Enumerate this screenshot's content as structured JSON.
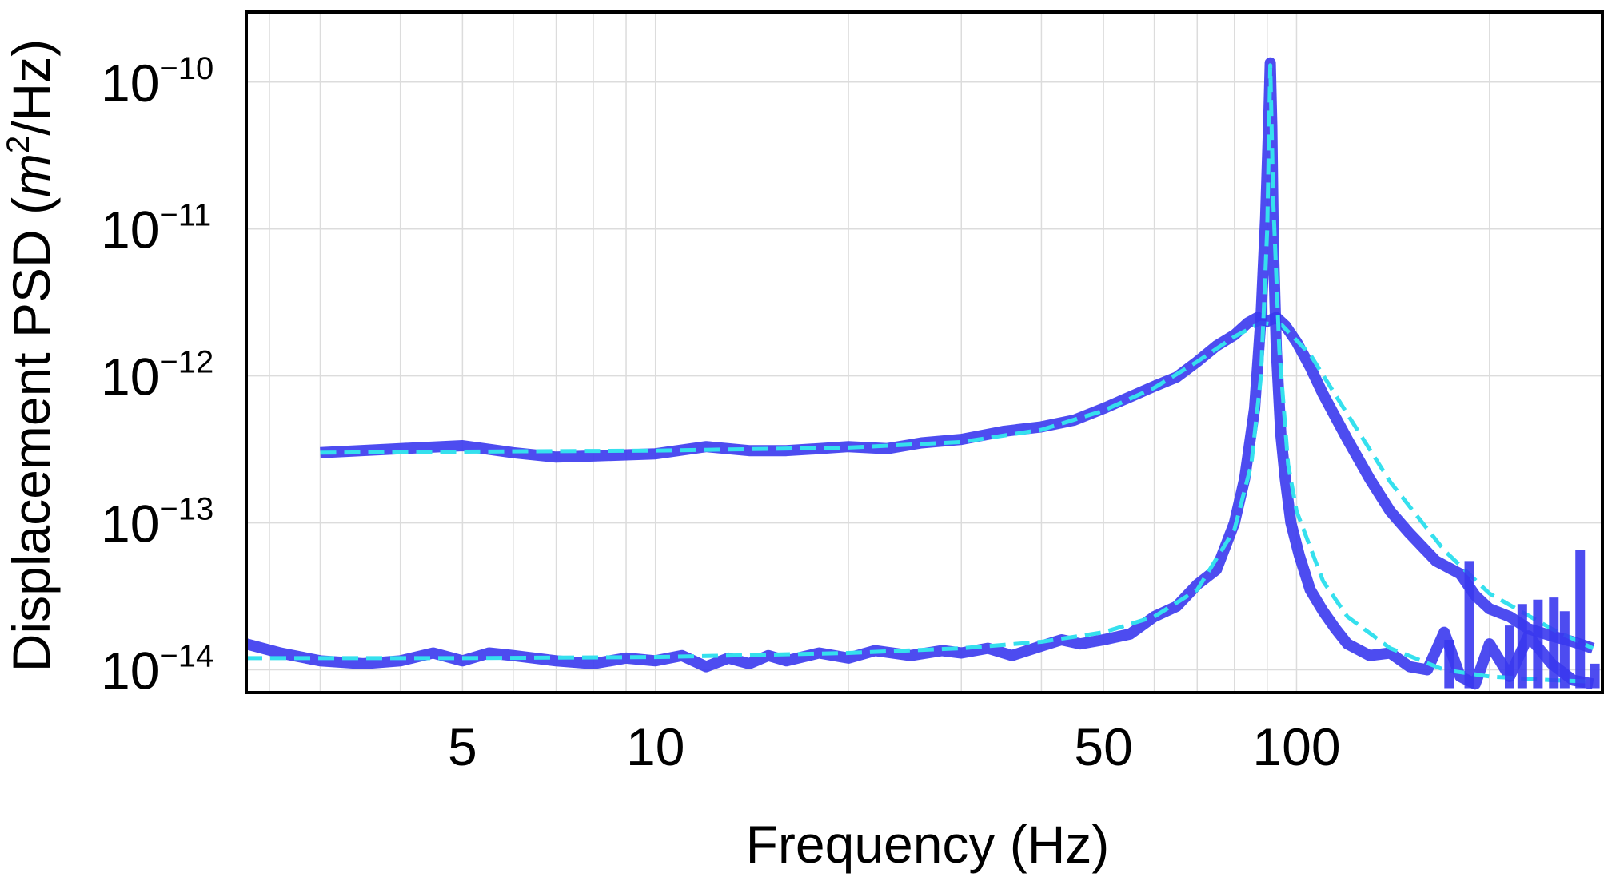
{
  "chart_data": {
    "type": "line",
    "xlabel": "Frequency (Hz)",
    "ylabel_base": "Displacement PSD (",
    "ylabel_italic": "m",
    "ylabel_sup": "2",
    "ylabel_tail": "/Hz)",
    "x_scale": "log",
    "y_scale": "log",
    "xlim": [
      2.3,
      300
    ],
    "ylim": [
      7e-15,
      3e-10
    ],
    "x_ticks": [
      {
        "value": 5,
        "label": "5"
      },
      {
        "value": 10,
        "label": "10"
      },
      {
        "value": 50,
        "label": "50"
      },
      {
        "value": 100,
        "label": "100"
      }
    ],
    "y_ticks": [
      {
        "value": 1e-14,
        "base": "10",
        "exp": "−14"
      },
      {
        "value": 1e-13,
        "base": "10",
        "exp": "−13"
      },
      {
        "value": 1e-12,
        "base": "10",
        "exp": "−12"
      },
      {
        "value": 1e-11,
        "base": "10",
        "exp": "−11"
      },
      {
        "value": 1e-10,
        "base": "10",
        "exp": "−10"
      }
    ],
    "x_grid": [
      2.5,
      3,
      4,
      5,
      6,
      7,
      8,
      9,
      10,
      20,
      30,
      40,
      50,
      60,
      70,
      80,
      90,
      100,
      200,
      300
    ],
    "grid": true,
    "colors": {
      "data": "#3a38ee",
      "fit": "#35e0ee",
      "grid": "#dcdcdc",
      "frame": "#000000"
    },
    "series": [
      {
        "style": "data",
        "x": [
          3.0,
          4.0,
          5.0,
          6.0,
          7.0,
          8.0,
          10.0,
          12.0,
          14.0,
          16.0,
          18.0,
          20.0,
          23.0,
          26.0,
          30.0,
          35.0,
          40.0,
          45.0,
          50.0,
          55.0,
          60.0,
          65.0,
          70.0,
          75.0,
          80.0,
          84.0,
          87.0,
          90.0,
          93.0,
          96.0,
          100.0,
          105.0,
          110.0,
          120.0,
          130.0,
          140.0,
          150.0,
          165.0,
          180.0,
          190.0,
          200.0,
          215.0,
          230.0,
          250.0,
          270.0,
          290.0
        ],
        "y": [
          3e-13,
          3.2e-13,
          3.35e-13,
          3e-13,
          2.8e-13,
          2.85e-13,
          2.95e-13,
          3.3e-13,
          3.1e-13,
          3.1e-13,
          3.2e-13,
          3.3e-13,
          3.2e-13,
          3.5e-13,
          3.7e-13,
          4.2e-13,
          4.5e-13,
          5e-13,
          6e-13,
          7.2e-13,
          8.5e-13,
          9.8e-13,
          1.25e-12,
          1.6e-12,
          1.9e-12,
          2.3e-12,
          2.5e-12,
          2.35e-12,
          2.5e-12,
          2.2e-12,
          1.7e-12,
          1.15e-12,
          7.5e-13,
          3.7e-13,
          2e-13,
          1.2e-13,
          8.5e-14,
          5.5e-14,
          4.5e-14,
          3.2e-14,
          2.6e-14,
          2.3e-14,
          1.9e-14,
          1.7e-14,
          1.55e-14,
          1.4e-14
        ]
      },
      {
        "style": "fit",
        "x": [
          3.0,
          5.0,
          10.0,
          20.0,
          30.0,
          40.0,
          50.0,
          60.0,
          70.0,
          80.0,
          88.0,
          95.0,
          105.0,
          120.0,
          140.0,
          170.0,
          200.0,
          250.0,
          290.0
        ],
        "y": [
          3e-13,
          3.05e-13,
          3.1e-13,
          3.25e-13,
          3.55e-13,
          4.3e-13,
          5.8e-13,
          8.3e-13,
          1.25e-12,
          1.85e-12,
          2.3e-12,
          2.2e-12,
          1.4e-12,
          5.5e-13,
          1.9e-13,
          6.5e-14,
          3.3e-14,
          1.9e-14,
          1.4e-14
        ]
      },
      {
        "style": "data",
        "x": [
          2.3,
          2.6,
          3.0,
          3.5,
          4.0,
          4.5,
          5.0,
          5.5,
          6.0,
          7.0,
          8.0,
          9.0,
          10.0,
          11.0,
          12.0,
          13.0,
          14.0,
          15.0,
          16.0,
          18.0,
          20.0,
          22.0,
          25.0,
          28.0,
          30.0,
          33.0,
          36.0,
          40.0,
          43.0,
          46.0,
          50.0,
          55.0,
          60.0,
          65.0,
          70.0,
          75.0,
          80.0,
          83.0,
          86.0,
          88.0,
          89.5,
          90.5,
          91.0,
          91.5,
          92.0,
          93.0,
          94.5,
          96.0,
          98.0,
          101.0,
          105.0,
          110.0,
          115.0,
          120.0,
          130.0,
          140.0,
          150.0,
          160.0,
          170.0,
          180.0,
          190.0,
          200.0,
          215.0,
          230.0,
          250.0,
          270.0,
          290.0
        ],
        "y": [
          1.5e-14,
          1.3e-14,
          1.15e-14,
          1.1e-14,
          1.15e-14,
          1.3e-14,
          1.15e-14,
          1.3e-14,
          1.25e-14,
          1.15e-14,
          1.1e-14,
          1.2e-14,
          1.15e-14,
          1.25e-14,
          1.05e-14,
          1.2e-14,
          1.1e-14,
          1.25e-14,
          1.15e-14,
          1.3e-14,
          1.2e-14,
          1.35e-14,
          1.25e-14,
          1.35e-14,
          1.3e-14,
          1.4e-14,
          1.25e-14,
          1.45e-14,
          1.6e-14,
          1.5e-14,
          1.6e-14,
          1.75e-14,
          2.3e-14,
          2.7e-14,
          3.8e-14,
          4.8e-14,
          1e-13,
          2e-13,
          6e-13,
          2.5e-12,
          1.2e-11,
          5.5e-11,
          1.35e-10,
          5e-11,
          8e-12,
          1.5e-12,
          4e-13,
          2e-13,
          1e-13,
          6e-14,
          3.5e-14,
          2.5e-14,
          1.9e-14,
          1.5e-14,
          1.25e-14,
          1.3e-14,
          1.05e-14,
          1e-14,
          1.8e-14,
          9e-15,
          8e-15,
          1.5e-14,
          9e-15,
          1.7e-14,
          1.1e-14,
          8.5e-15,
          8e-15
        ]
      },
      {
        "style": "fit",
        "x": [
          2.3,
          5.0,
          10.0,
          20.0,
          30.0,
          40.0,
          50.0,
          60.0,
          70.0,
          80.0,
          85.0,
          88.0,
          90.0,
          91.0,
          92.0,
          94.0,
          97.0,
          100.0,
          110.0,
          120.0,
          140.0,
          170.0,
          200.0,
          250.0,
          290.0
        ],
        "y": [
          1.2e-14,
          1.2e-14,
          1.22e-14,
          1.3e-14,
          1.4e-14,
          1.55e-14,
          1.8e-14,
          2.3e-14,
          3.5e-14,
          9e-14,
          2.5e-13,
          1e-12,
          1e-11,
          1.3e-10,
          1.5e-11,
          1.5e-12,
          2.5e-13,
          1.2e-13,
          4e-14,
          2.3e-14,
          1.4e-14,
          1e-14,
          9e-15,
          8.5e-15,
          8.3e-15
        ]
      }
    ],
    "spikes": [
      {
        "x": 173,
        "y_low": 7.5e-15,
        "y_high": 1.6e-14
      },
      {
        "x": 186,
        "y_low": 7.5e-15,
        "y_high": 5.5e-14
      },
      {
        "x": 215,
        "y_low": 7.5e-15,
        "y_high": 2e-14
      },
      {
        "x": 225,
        "y_low": 7.5e-15,
        "y_high": 2.8e-14
      },
      {
        "x": 238,
        "y_low": 7.5e-15,
        "y_high": 3e-14
      },
      {
        "x": 252,
        "y_low": 7.5e-15,
        "y_high": 3.1e-14
      },
      {
        "x": 262,
        "y_low": 7.5e-15,
        "y_high": 2.5e-14
      },
      {
        "x": 277,
        "y_low": 7.5e-15,
        "y_high": 6.5e-14
      },
      {
        "x": 292,
        "y_low": 7.5e-15,
        "y_high": 1.1e-14
      }
    ]
  }
}
